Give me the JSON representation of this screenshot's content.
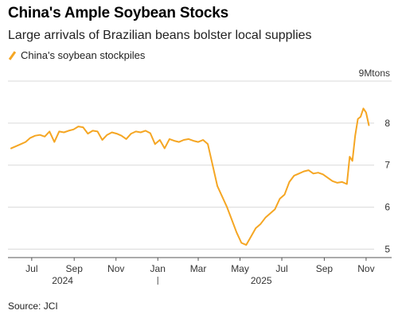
{
  "chart_data": {
    "type": "line",
    "title": "China's Ample Soybean Stocks",
    "subtitle": "Large arrivals of Brazilian beans bolster local supplies",
    "source": "Source: JCI",
    "unit": "9Mtons",
    "colors": {
      "line": "#f5a623",
      "grid": "#d9d9d9",
      "axis": "#555555"
    },
    "grid": true,
    "legend_position": "top-left",
    "ylim": [
      4.8,
      9.0
    ],
    "y_ticks": [
      5,
      6,
      7,
      8
    ],
    "x_ticks": [
      {
        "label": "Jul",
        "date": "2024-07-01"
      },
      {
        "label": "Sep",
        "date": "2024-09-01"
      },
      {
        "label": "Nov",
        "date": "2024-11-01"
      },
      {
        "label": "Jan",
        "date": "2025-01-01"
      },
      {
        "label": "Mar",
        "date": "2025-03-01"
      },
      {
        "label": "May",
        "date": "2025-05-01"
      },
      {
        "label": "Jul",
        "date": "2025-07-01"
      },
      {
        "label": "Sep",
        "date": "2025-09-01"
      },
      {
        "label": "Nov",
        "date": "2025-11-01"
      }
    ],
    "year_labels": [
      {
        "label": "2024",
        "date": "2024-08-15"
      },
      {
        "label": "2025",
        "date": "2025-06-01"
      }
    ],
    "series": [
      {
        "name": "China's soybean stockpiles",
        "x": [
          "2024-06-01",
          "2024-06-08",
          "2024-06-15",
          "2024-06-22",
          "2024-06-29",
          "2024-07-06",
          "2024-07-13",
          "2024-07-20",
          "2024-07-27",
          "2024-08-03",
          "2024-08-10",
          "2024-08-17",
          "2024-08-24",
          "2024-08-31",
          "2024-09-07",
          "2024-09-14",
          "2024-09-21",
          "2024-09-28",
          "2024-10-05",
          "2024-10-12",
          "2024-10-19",
          "2024-10-26",
          "2024-11-02",
          "2024-11-09",
          "2024-11-16",
          "2024-11-23",
          "2024-11-30",
          "2024-12-07",
          "2024-12-14",
          "2024-12-21",
          "2024-12-28",
          "2025-01-04",
          "2025-01-11",
          "2025-01-18",
          "2025-01-25",
          "2025-02-01",
          "2025-02-08",
          "2025-02-15",
          "2025-02-22",
          "2025-03-01",
          "2025-03-08",
          "2025-03-15",
          "2025-03-22",
          "2025-03-29",
          "2025-04-05",
          "2025-04-12",
          "2025-04-19",
          "2025-04-26",
          "2025-05-03",
          "2025-05-10",
          "2025-05-17",
          "2025-05-24",
          "2025-05-31",
          "2025-06-07",
          "2025-06-14",
          "2025-06-21",
          "2025-06-28",
          "2025-07-05",
          "2025-07-12",
          "2025-07-19",
          "2025-07-26",
          "2025-08-02",
          "2025-08-09",
          "2025-08-16",
          "2025-08-23",
          "2025-08-30",
          "2025-09-06",
          "2025-09-13",
          "2025-09-20",
          "2025-09-27",
          "2025-10-04",
          "2025-10-08",
          "2025-10-12",
          "2025-10-16",
          "2025-10-20",
          "2025-10-24",
          "2025-10-28",
          "2025-11-01",
          "2025-11-05"
        ],
        "values": [
          7.4,
          7.45,
          7.5,
          7.55,
          7.65,
          7.7,
          7.72,
          7.68,
          7.8,
          7.55,
          7.8,
          7.78,
          7.82,
          7.85,
          7.92,
          7.9,
          7.75,
          7.82,
          7.8,
          7.6,
          7.72,
          7.78,
          7.75,
          7.7,
          7.62,
          7.75,
          7.8,
          7.78,
          7.82,
          7.76,
          7.5,
          7.6,
          7.4,
          7.62,
          7.58,
          7.55,
          7.6,
          7.62,
          7.58,
          7.55,
          7.6,
          7.5,
          7.0,
          6.5,
          6.25,
          6.0,
          5.7,
          5.4,
          5.15,
          5.1,
          5.3,
          5.5,
          5.6,
          5.75,
          5.85,
          5.95,
          6.2,
          6.3,
          6.6,
          6.75,
          6.8,
          6.85,
          6.88,
          6.8,
          6.82,
          6.78,
          6.7,
          6.62,
          6.58,
          6.6,
          6.55,
          7.2,
          7.1,
          7.7,
          8.1,
          8.15,
          8.35,
          8.25,
          7.95
        ]
      }
    ]
  }
}
